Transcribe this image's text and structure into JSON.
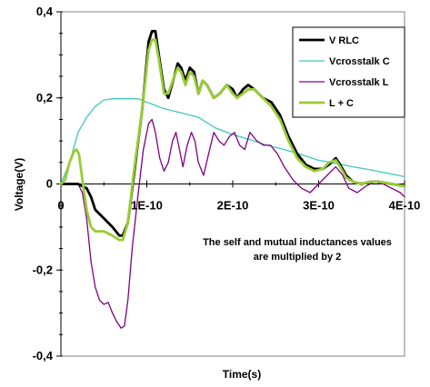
{
  "chart_data": {
    "type": "line",
    "xlabel": "Time(s)",
    "ylabel": "Voltage(V)",
    "xlim": [
      0,
      4e-10
    ],
    "ylim": [
      -0.4,
      0.4
    ],
    "x_ticks": [
      {
        "value": 0,
        "label": "0"
      },
      {
        "value": 1e-10,
        "label": "1E-10"
      },
      {
        "value": 2e-10,
        "label": "2E-10"
      },
      {
        "value": 3e-10,
        "label": "3E-10"
      },
      {
        "value": 4e-10,
        "label": "4E-10"
      }
    ],
    "y_ticks": [
      {
        "value": 0.4,
        "label": "0,4"
      },
      {
        "value": 0.2,
        "label": "0,2"
      },
      {
        "value": 0,
        "label": "0"
      },
      {
        "value": -0.2,
        "label": "-0,2"
      },
      {
        "value": -0.4,
        "label": "-0,4"
      }
    ],
    "annotation": [
      "The self and mutual inductances values",
      "are multiplied by 2"
    ],
    "legend_position": "top-right",
    "grid": false,
    "series": [
      {
        "name": "V RLC",
        "color": "#000000",
        "points": [
          [
            0,
            0
          ],
          [
            1e-11,
            0
          ],
          [
            2e-11,
            0
          ],
          [
            3e-11,
            -0.01
          ],
          [
            3.5e-11,
            -0.03
          ],
          [
            4e-11,
            -0.06
          ],
          [
            5e-11,
            -0.08
          ],
          [
            6e-11,
            -0.1
          ],
          [
            6.8e-11,
            -0.12
          ],
          [
            7.2e-11,
            -0.12
          ],
          [
            7.8e-11,
            -0.09
          ],
          [
            8.5e-11,
            0.02
          ],
          [
            9.5e-11,
            0.18
          ],
          [
            1.02e-10,
            0.33
          ],
          [
            1.06e-10,
            0.355
          ],
          [
            1.1e-10,
            0.355
          ],
          [
            1.14e-10,
            0.3
          ],
          [
            1.2e-10,
            0.22
          ],
          [
            1.25e-10,
            0.2
          ],
          [
            1.32e-10,
            0.25
          ],
          [
            1.36e-10,
            0.28
          ],
          [
            1.4e-10,
            0.27
          ],
          [
            1.45e-10,
            0.24
          ],
          [
            1.5e-10,
            0.27
          ],
          [
            1.55e-10,
            0.26
          ],
          [
            1.6e-10,
            0.21
          ],
          [
            1.65e-10,
            0.24
          ],
          [
            1.7e-10,
            0.23
          ],
          [
            1.78e-10,
            0.2
          ],
          [
            1.85e-10,
            0.21
          ],
          [
            1.93e-10,
            0.23
          ],
          [
            2e-10,
            0.22
          ],
          [
            2.05e-10,
            0.2
          ],
          [
            2.12e-10,
            0.22
          ],
          [
            2.18e-10,
            0.23
          ],
          [
            2.25e-10,
            0.22
          ],
          [
            2.35e-10,
            0.2
          ],
          [
            2.45e-10,
            0.19
          ],
          [
            2.55e-10,
            0.16
          ],
          [
            2.65e-10,
            0.11
          ],
          [
            2.75e-10,
            0.07
          ],
          [
            2.85e-10,
            0.045
          ],
          [
            2.95e-10,
            0.035
          ],
          [
            3.05e-10,
            0.035
          ],
          [
            3.12e-10,
            0.045
          ],
          [
            3.2e-10,
            0.06
          ],
          [
            3.25e-10,
            0.045
          ],
          [
            3.32e-10,
            0.02
          ],
          [
            3.4e-10,
            0.005
          ],
          [
            3.5e-10,
            0
          ],
          [
            3.6e-10,
            0.005
          ],
          [
            3.7e-10,
            0.005
          ],
          [
            3.85e-10,
            0
          ],
          [
            4e-10,
            -0.005
          ]
        ]
      },
      {
        "name": "Vcrosstalk C",
        "color": "#40c8c0",
        "points": [
          [
            0,
            0
          ],
          [
            1e-11,
            0.05
          ],
          [
            2e-11,
            0.12
          ],
          [
            3e-11,
            0.155
          ],
          [
            4e-11,
            0.18
          ],
          [
            5e-11,
            0.195
          ],
          [
            6e-11,
            0.198
          ],
          [
            7e-11,
            0.198
          ],
          [
            8e-11,
            0.198
          ],
          [
            9e-11,
            0.198
          ],
          [
            1e-10,
            0.19
          ],
          [
            1.2e-10,
            0.175
          ],
          [
            1.4e-10,
            0.165
          ],
          [
            1.6e-10,
            0.155
          ],
          [
            1.8e-10,
            0.13
          ],
          [
            2e-10,
            0.115
          ],
          [
            2.2e-10,
            0.103
          ],
          [
            2.4e-10,
            0.09
          ],
          [
            2.6e-10,
            0.08
          ],
          [
            2.8e-10,
            0.068
          ],
          [
            3e-10,
            0.055
          ],
          [
            3.2e-10,
            0.048
          ],
          [
            3.4e-10,
            0.04
          ],
          [
            3.6e-10,
            0.033
          ],
          [
            3.8e-10,
            0.025
          ],
          [
            4e-10,
            0.017
          ]
        ]
      },
      {
        "name": "Vcrosstalk L",
        "color": "#800080",
        "points": [
          [
            0,
            0
          ],
          [
            1e-11,
            0
          ],
          [
            2e-11,
            0
          ],
          [
            2.5e-11,
            -0.02
          ],
          [
            3e-11,
            -0.08
          ],
          [
            3.5e-11,
            -0.18
          ],
          [
            4e-11,
            -0.24
          ],
          [
            4.5e-11,
            -0.27
          ],
          [
            5e-11,
            -0.28
          ],
          [
            5.5e-11,
            -0.275
          ],
          [
            6e-11,
            -0.3
          ],
          [
            6.5e-11,
            -0.32
          ],
          [
            7e-11,
            -0.335
          ],
          [
            7.4e-11,
            -0.33
          ],
          [
            7.8e-11,
            -0.27
          ],
          [
            8.3e-11,
            -0.15
          ],
          [
            9e-11,
            -0.02
          ],
          [
            9.6e-11,
            0.08
          ],
          [
            1.02e-10,
            0.14
          ],
          [
            1.06e-10,
            0.15
          ],
          [
            1.1e-10,
            0.12
          ],
          [
            1.15e-10,
            0.06
          ],
          [
            1.2e-10,
            0.03
          ],
          [
            1.25e-10,
            0.05
          ],
          [
            1.3e-10,
            0.1
          ],
          [
            1.34e-10,
            0.12
          ],
          [
            1.38e-10,
            0.08
          ],
          [
            1.42e-10,
            0.04
          ],
          [
            1.47e-10,
            0.09
          ],
          [
            1.52e-10,
            0.12
          ],
          [
            1.56e-10,
            0.1
          ],
          [
            1.6e-10,
            0.05
          ],
          [
            1.66e-10,
            0.02
          ],
          [
            1.72e-10,
            0.07
          ],
          [
            1.78e-10,
            0.12
          ],
          [
            1.84e-10,
            0.1
          ],
          [
            1.9e-10,
            0.09
          ],
          [
            1.96e-10,
            0.11
          ],
          [
            2.02e-10,
            0.12
          ],
          [
            2.08e-10,
            0.09
          ],
          [
            2.14e-10,
            0.08
          ],
          [
            2.2e-10,
            0.12
          ],
          [
            2.28e-10,
            0.1
          ],
          [
            2.36e-10,
            0.09
          ],
          [
            2.44e-10,
            0.09
          ],
          [
            2.52e-10,
            0.07
          ],
          [
            2.6e-10,
            0.04
          ],
          [
            2.7e-10,
            0.01
          ],
          [
            2.8e-10,
            -0.01
          ],
          [
            2.9e-10,
            -0.02
          ],
          [
            3e-10,
            0
          ],
          [
            3.1e-10,
            0.02
          ],
          [
            3.2e-10,
            0.04
          ],
          [
            3.28e-10,
            0.02
          ],
          [
            3.35e-10,
            -0.01
          ],
          [
            3.45e-10,
            -0.02
          ],
          [
            3.55e-10,
            -0.005
          ],
          [
            3.65e-10,
            0.005
          ],
          [
            3.75e-10,
            0
          ],
          [
            3.85e-10,
            -0.01
          ],
          [
            3.95e-10,
            -0.02
          ],
          [
            4e-10,
            -0.03
          ]
        ]
      },
      {
        "name": "L + C",
        "color": "#99cc33",
        "points": [
          [
            0,
            0
          ],
          [
            5e-12,
            0.01
          ],
          [
            1e-11,
            0.05
          ],
          [
            1.5e-11,
            0.075
          ],
          [
            1.8e-11,
            0.08
          ],
          [
            2.1e-11,
            0.07
          ],
          [
            2.5e-11,
            0.01
          ],
          [
            3e-11,
            -0.06
          ],
          [
            3.5e-11,
            -0.1
          ],
          [
            4e-11,
            -0.11
          ],
          [
            5e-11,
            -0.11
          ],
          [
            6e-11,
            -0.12
          ],
          [
            6.8e-11,
            -0.13
          ],
          [
            7.2e-11,
            -0.13
          ],
          [
            7.8e-11,
            -0.09
          ],
          [
            8.5e-11,
            0.03
          ],
          [
            9.5e-11,
            0.18
          ],
          [
            1.02e-10,
            0.31
          ],
          [
            1.06e-10,
            0.335
          ],
          [
            1.1e-10,
            0.335
          ],
          [
            1.14e-10,
            0.29
          ],
          [
            1.2e-10,
            0.21
          ],
          [
            1.25e-10,
            0.21
          ],
          [
            1.32e-10,
            0.25
          ],
          [
            1.36e-10,
            0.27
          ],
          [
            1.4e-10,
            0.26
          ],
          [
            1.45e-10,
            0.23
          ],
          [
            1.5e-10,
            0.26
          ],
          [
            1.55e-10,
            0.25
          ],
          [
            1.6e-10,
            0.21
          ],
          [
            1.65e-10,
            0.24
          ],
          [
            1.7e-10,
            0.23
          ],
          [
            1.78e-10,
            0.2
          ],
          [
            1.85e-10,
            0.21
          ],
          [
            1.93e-10,
            0.23
          ],
          [
            2e-10,
            0.21
          ],
          [
            2.05e-10,
            0.2
          ],
          [
            2.12e-10,
            0.21
          ],
          [
            2.18e-10,
            0.22
          ],
          [
            2.25e-10,
            0.22
          ],
          [
            2.35e-10,
            0.2
          ],
          [
            2.45e-10,
            0.18
          ],
          [
            2.55e-10,
            0.15
          ],
          [
            2.65e-10,
            0.1
          ],
          [
            2.75e-10,
            0.06
          ],
          [
            2.85e-10,
            0.04
          ],
          [
            2.95e-10,
            0.03
          ],
          [
            3.05e-10,
            0.035
          ],
          [
            3.12e-10,
            0.05
          ],
          [
            3.2e-10,
            0.055
          ],
          [
            3.25e-10,
            0.04
          ],
          [
            3.32e-10,
            0.015
          ],
          [
            3.4e-10,
            0.005
          ],
          [
            3.5e-10,
            0
          ],
          [
            3.6e-10,
            0.005
          ],
          [
            3.7e-10,
            0.005
          ],
          [
            3.85e-10,
            0
          ],
          [
            4e-10,
            -0.005
          ]
        ]
      }
    ]
  }
}
